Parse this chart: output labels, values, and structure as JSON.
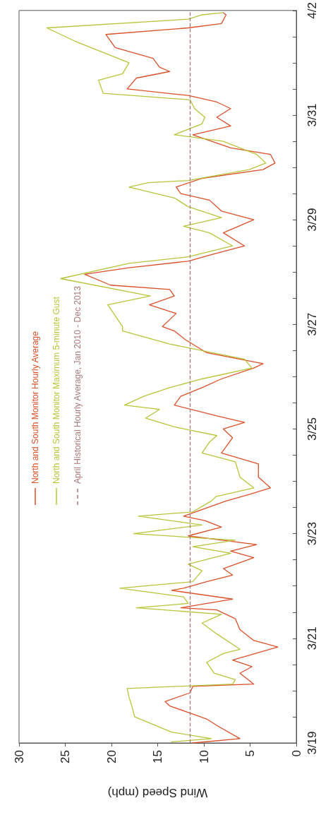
{
  "chart_data": {
    "type": "line",
    "orientation": "horizontal",
    "xlabel": "Wind Speed (mph)",
    "xlim": [
      30,
      0
    ],
    "xticks": [
      0,
      5,
      10,
      15,
      20,
      25,
      30
    ],
    "ylim": [
      "--03-19",
      "--04-02"
    ],
    "yticks": [
      {
        "value": "--03-19",
        "label": "3/19"
      },
      {
        "value": "--03-19T12:00",
        "label": null
      },
      {
        "value": "--03-20",
        "label": null
      },
      {
        "value": "--03-20T12:00",
        "label": null
      },
      {
        "value": "--03-21",
        "label": "3/21"
      },
      {
        "value": "--03-21T12:00",
        "label": null
      },
      {
        "value": "--03-22",
        "label": null
      },
      {
        "value": "--03-22T12:00",
        "label": null
      },
      {
        "value": "--03-23",
        "label": "3/23"
      },
      {
        "value": "--03-23T12:00",
        "label": null
      },
      {
        "value": "--03-24",
        "label": null
      },
      {
        "value": "--03-24T12:00",
        "label": null
      },
      {
        "value": "--03-25",
        "label": "3/25"
      },
      {
        "value": "--03-25T12:00",
        "label": null
      },
      {
        "value": "--03-26",
        "label": null
      },
      {
        "value": "--03-26T12:00",
        "label": null
      },
      {
        "value": "--03-27",
        "label": "3/27"
      },
      {
        "value": "--03-27T12:00",
        "label": null
      },
      {
        "value": "--03-28",
        "label": null
      },
      {
        "value": "--03-28T12:00",
        "label": null
      },
      {
        "value": "--03-29",
        "label": "3/29"
      },
      {
        "value": "--03-29T12:00",
        "label": null
      },
      {
        "value": "--03-30",
        "label": null
      },
      {
        "value": "--03-30T12:00",
        "label": null
      },
      {
        "value": "--03-31",
        "label": "3/31"
      },
      {
        "value": "--03-31T12:00",
        "label": null
      },
      {
        "value": "--04-01",
        "label": null
      },
      {
        "value": "--04-01T12:00",
        "label": null
      },
      {
        "value": "--04-02",
        "label": "4/2"
      }
    ],
    "grid": false,
    "legend": "left",
    "marker": "none",
    "ref_lines": [
      {
        "axis": "x",
        "value": 11.5,
        "label": "April Historical Hourly Average, Jan 2010 - Dec 2013",
        "color": "#a87878",
        "line_style": "dashed"
      }
    ],
    "series": [
      {
        "name": "North and South Monitor Hourly Average",
        "color": "#d9502a",
        "x": [
          "--03-19T00:00",
          "--03-19T02:00",
          "--03-19T08:00",
          "--03-19T11:00",
          "--03-19T17:00",
          "--03-19T19:00",
          "--03-19T23:00",
          "--03-20T02:00",
          "--03-20T03:00",
          "--03-20T08:00",
          "--03-20T11:00",
          "--03-20T14:00",
          "--03-20T20:00",
          "--03-20T23:00",
          "--03-21T04:00",
          "--03-21T09:00",
          "--03-21T13:00",
          "--03-21T14:00",
          "--03-21T18:00",
          "--03-21T22:00",
          "--03-21T23:00",
          "--03-22T02:00",
          "--03-22T05:00",
          "--03-22T08:00",
          "--03-22T13:00",
          "--03-22T16:00",
          "--03-22T19:00",
          "--03-22T23:00",
          "--03-23T03:00",
          "--03-23T06:00",
          "--03-23T08:00",
          "--03-23T15:00",
          "--03-23T18:00",
          "--03-23T21:00",
          "--03-24T02:00",
          "--03-24T08:00",
          "--03-24T13:00",
          "--03-24T20:00",
          "--03-25T00:00",
          "--03-25T03:00",
          "--03-25T06:00",
          "--03-25T11:00",
          "--03-25T15:00",
          "--03-25T19:00",
          "--03-25T23:00",
          "--03-26T04:00",
          "--03-26T06:00",
          "--03-26T11:00",
          "--03-26T17:00",
          "--03-26T21:00",
          "--03-26T23:00",
          "--03-27T05:00",
          "--03-27T09:00",
          "--03-27T13:00",
          "--03-27T16:00",
          "--03-27T18:00",
          "--03-27T23:00",
          "--03-28T02:00",
          "--03-28T05:00",
          "--03-28T08:00",
          "--03-28T12:00",
          "--03-28T18:00",
          "--03-29T00:00",
          "--03-29T04:00",
          "--03-29T09:00",
          "--03-29T12:00",
          "--03-29T15:00",
          "--03-29T19:00",
          "--03-29T23:00",
          "--03-30T02:00",
          "--03-30T06:00",
          "--03-30T09:00",
          "--03-30T15:00",
          "--03-30T19:00",
          "--03-30T23:00",
          "--03-31T03:00",
          "--03-31T06:00",
          "--03-31T09:00",
          "--03-31T12:00",
          "--03-31T17:00",
          "--03-31T20:00",
          "--03-31T22:00",
          "--04-01T02:00",
          "--04-01T07:00",
          "--04-01T13:00",
          "--04-01T16:00",
          "--04-01T18:00",
          "--04-01T22:00",
          "--04-01T23:00"
        ],
        "values": [
          11.2,
          6.1,
          8.6,
          9.7,
          13.7,
          14.2,
          11.5,
          11.2,
          4.6,
          6.1,
          4.8,
          6.9,
          2.0,
          4.6,
          6.1,
          6.6,
          8.6,
          12.5,
          6.9,
          13.5,
          12.2,
          9.7,
          6.9,
          7.9,
          4.6,
          7.1,
          4.3,
          11.7,
          8.1,
          9.9,
          12.2,
          7.6,
          5.1,
          2.8,
          4.1,
          4.1,
          8.1,
          6.9,
          7.9,
          5.6,
          8.6,
          13.2,
          12.5,
          10.2,
          8.1,
          4.6,
          3.6,
          9.7,
          12.0,
          13.2,
          14.5,
          13.0,
          15.9,
          13.2,
          13.7,
          20.1,
          22.9,
          18.1,
          11.7,
          9.2,
          5.6,
          7.9,
          4.6,
          8.1,
          9.4,
          12.5,
          13.0,
          10.2,
          3.6,
          2.3,
          2.8,
          7.1,
          11.2,
          7.1,
          8.6,
          7.1,
          8.6,
          11.7,
          18.3,
          17.3,
          13.7,
          14.8,
          15.5,
          19.6,
          20.6,
          11.7,
          8.1,
          7.6,
          7.9
        ]
      },
      {
        "name": "North and South Monitor Maximum 5-minute Gust",
        "color": "#b8c43a",
        "x": [
          "--03-19T00:30",
          "--03-19T02:00",
          "--03-19T05:00",
          "--03-19T12:00",
          "--03-19T17:00",
          "--03-19T21:00",
          "--03-20T01:00",
          "--03-20T03:00",
          "--03-20T05:00",
          "--03-20T08:00",
          "--03-20T13:00",
          "--03-20T17:00",
          "--03-20T19:00",
          "--03-21T02:00",
          "--03-21T07:00",
          "--03-21T11:00",
          "--03-21T14:00",
          "--03-21T16:00",
          "--03-21T19:00",
          "--03-21T23:00",
          "--03-22T02:00",
          "--03-22T07:00",
          "--03-22T10:00",
          "--03-22T15:00",
          "--03-22T18:00",
          "--03-22T21:00",
          "--03-23T00:00",
          "--03-23T04:00",
          "--03-23T08:00",
          "--03-23T10:00",
          "--03-23T15:00",
          "--03-23T17:00",
          "--03-23T21:00",
          "--03-24T02:00",
          "--03-24T09:00",
          "--03-24T13:00",
          "--03-24T18:00",
          "--03-24T21:00",
          "--03-25T01:00",
          "--03-25T05:00",
          "--03-25T09:00",
          "--03-25T11:00",
          "--03-25T15:00",
          "--03-25T19:00",
          "--03-25T23:00",
          "--03-26T04:00",
          "--03-26T08:00",
          "--03-26T15:00",
          "--03-26T21:00",
          "--03-26T23:00",
          "--03-27T09:00",
          "--03-27T13:00",
          "--03-27T21:00",
          "--03-28T04:00",
          "--03-28T07:00",
          "--03-28T12:00",
          "--03-28T18:00",
          "--03-28T21:00",
          "--03-29T01:00",
          "--03-29T06:00",
          "--03-29T10:00",
          "--03-29T15:00",
          "--03-29T17:00",
          "--03-29T18:00",
          "--03-29T23:00",
          "--03-30T02:00",
          "--03-30T06:00",
          "--03-30T12:00",
          "--03-30T15:00",
          "--03-30T20:00",
          "--03-30T23:00",
          "--03-31T03:00",
          "--03-31T07:00",
          "--03-31T10:00",
          "--03-31T16:00",
          "--03-31T19:00",
          "--04-01T00:00",
          "--04-01T10:00",
          "--04-01T16:00",
          "--04-01T20:00",
          "--04-01T22:00",
          "--04-01T23:00"
        ],
        "values": [
          13.5,
          9.2,
          13.5,
          17.5,
          17.8,
          18.1,
          18.3,
          6.9,
          6.6,
          8.9,
          9.7,
          7.9,
          6.1,
          8.6,
          10.2,
          8.1,
          17.3,
          11.7,
          12.2,
          19.1,
          11.2,
          10.2,
          11.7,
          7.1,
          11.2,
          6.6,
          17.6,
          10.2,
          17.1,
          11.2,
          9.2,
          8.7,
          4.6,
          6.1,
          6.6,
          10.2,
          9.4,
          8.6,
          13.2,
          16.3,
          14.8,
          18.6,
          16.5,
          13.7,
          10.2,
          4.8,
          5.6,
          13.7,
          18.8,
          18.8,
          20.4,
          15.8,
          25.5,
          18.1,
          11.7,
          6.9,
          9.4,
          12.2,
          8.1,
          11.7,
          13.2,
          18.1,
          16.0,
          11.7,
          5.1,
          3.3,
          4.3,
          7.9,
          13.2,
          10.2,
          9.9,
          11.0,
          11.5,
          20.9,
          21.4,
          18.8,
          18.1,
          24.0,
          27.0,
          11.7,
          10.2,
          7.9
        ]
      }
    ]
  }
}
